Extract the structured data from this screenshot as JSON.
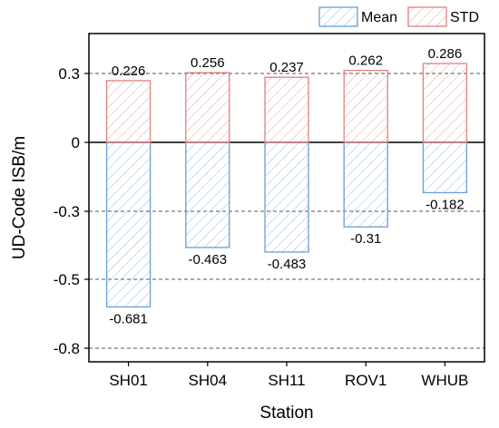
{
  "chart_data": {
    "type": "bar",
    "categories": [
      "SH01",
      "SH04",
      "SH11",
      "ROV1",
      "WHUB"
    ],
    "series": [
      {
        "name": "Mean",
        "values": [
          -0.681,
          -0.463,
          -0.483,
          -0.31,
          -0.182
        ],
        "display_values": [
          -0.72,
          -0.46,
          -0.48,
          -0.37,
          -0.22
        ],
        "labels": [
          "-0.681",
          "-0.463",
          "-0.483",
          "-0.31",
          "-0.182"
        ],
        "color": "#6a9fd4"
      },
      {
        "name": "STD",
        "values": [
          0.226,
          0.256,
          0.237,
          0.262,
          0.286
        ],
        "display_values": [
          0.27,
          0.305,
          0.285,
          0.315,
          0.345
        ],
        "labels": [
          "0.226",
          "0.256",
          "0.237",
          "0.262",
          "0.286"
        ],
        "color": "#e08080"
      }
    ],
    "xlabel": "Station",
    "ylabel": "UD-Code ISB/m",
    "ylim": [
      -0.9,
      0.45
    ],
    "yticks": [
      0.3,
      0,
      -0.3,
      -0.5,
      -0.8
    ],
    "ytick_labels": [
      "0.3",
      "0",
      "-0.3",
      "-0.5",
      "-0.8"
    ],
    "grid": "dashed horizontal at y ticks",
    "legend": "top-right"
  }
}
